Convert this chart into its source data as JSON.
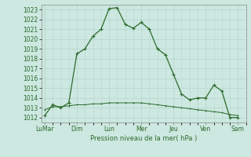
{
  "background_color": "#cce8e0",
  "grid_color": "#b0d8d0",
  "line_color": "#2d6a2d",
  "xtick_labels": [
    "LuMar",
    "Dim",
    "Lun",
    "Mer",
    "Jeu",
    "Ven",
    "Sam"
  ],
  "xtick_positions": [
    0,
    2,
    4,
    6,
    8,
    10,
    12
  ],
  "xlabel": "Pression niveau de la mer( hPa )",
  "ylim": [
    1011.5,
    1023.5
  ],
  "yticks": [
    1012,
    1013,
    1014,
    1015,
    1016,
    1017,
    1018,
    1019,
    1020,
    1021,
    1022,
    1023
  ],
  "series1_x": [
    0,
    0.5,
    1,
    1.5,
    2,
    2.5,
    3,
    3.5,
    4,
    4.5,
    5,
    5.5,
    6,
    6.5,
    7,
    7.5,
    8,
    8.5,
    9,
    9.5,
    10,
    10.5,
    11,
    11.5,
    12
  ],
  "series1_y": [
    1012.2,
    1013.3,
    1013.0,
    1013.5,
    1018.5,
    1019.0,
    1020.3,
    1021.0,
    1023.1,
    1023.2,
    1021.5,
    1021.1,
    1021.7,
    1021.0,
    1019.0,
    1018.4,
    1016.4,
    1014.4,
    1013.8,
    1014.0,
    1014.0,
    1015.3,
    1014.7,
    1012.0,
    1012.0
  ],
  "series2_x": [
    0,
    0.5,
    1,
    1.5,
    2,
    2.5,
    3,
    3.5,
    4,
    4.5,
    5,
    5.5,
    6,
    6.5,
    7,
    7.5,
    8,
    8.5,
    9,
    9.5,
    10,
    10.5,
    11,
    11.5,
    12
  ],
  "series2_y": [
    1012.8,
    1013.1,
    1013.1,
    1013.2,
    1013.3,
    1013.3,
    1013.4,
    1013.4,
    1013.5,
    1013.5,
    1013.5,
    1013.5,
    1013.5,
    1013.4,
    1013.3,
    1013.2,
    1013.1,
    1013.0,
    1012.9,
    1012.8,
    1012.7,
    1012.6,
    1012.5,
    1012.3,
    1012.2
  ],
  "xlim": [
    -0.2,
    12.5
  ]
}
